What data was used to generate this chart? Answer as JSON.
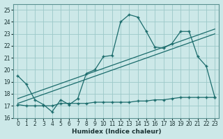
{
  "xlabel": "Humidex (Indice chaleur)",
  "bg_color": "#cce8e8",
  "grid_color": "#9cc8c8",
  "line_color": "#1a6b6b",
  "xlim": [
    -0.5,
    23.5
  ],
  "ylim": [
    16,
    25.5
  ],
  "xticks": [
    0,
    1,
    2,
    3,
    4,
    5,
    6,
    7,
    8,
    9,
    10,
    11,
    12,
    13,
    14,
    15,
    16,
    17,
    18,
    19,
    20,
    21,
    22,
    23
  ],
  "yticks": [
    16,
    17,
    18,
    19,
    20,
    21,
    22,
    23,
    24,
    25
  ],
  "line1_x": [
    0,
    1,
    2,
    3,
    4,
    5,
    6,
    7,
    8,
    9,
    10,
    11,
    12,
    13,
    14,
    15,
    16,
    17,
    18,
    19,
    20,
    21,
    22,
    23
  ],
  "line1_y": [
    19.5,
    18.8,
    17.5,
    17.1,
    16.5,
    17.5,
    17.1,
    17.6,
    19.7,
    20.0,
    21.1,
    21.2,
    24.0,
    24.6,
    24.4,
    23.2,
    21.9,
    21.8,
    22.2,
    23.2,
    23.2,
    21.1,
    20.3,
    17.7
  ],
  "line2_x": [
    0,
    1,
    2,
    3,
    4,
    5,
    6,
    7,
    8,
    9,
    10,
    11,
    12,
    13,
    14,
    15,
    16,
    17,
    18,
    19,
    20,
    21,
    22,
    23
  ],
  "line2_y": [
    17.1,
    17.0,
    17.0,
    17.0,
    17.0,
    17.2,
    17.2,
    17.2,
    17.2,
    17.3,
    17.3,
    17.3,
    17.3,
    17.3,
    17.4,
    17.4,
    17.5,
    17.5,
    17.6,
    17.7,
    17.7,
    17.7,
    17.7,
    17.7
  ],
  "trend1_x": [
    0,
    23
  ],
  "trend1_y": [
    17.6,
    23.4
  ],
  "trend2_x": [
    0,
    23
  ],
  "trend2_y": [
    17.2,
    23.0
  ]
}
